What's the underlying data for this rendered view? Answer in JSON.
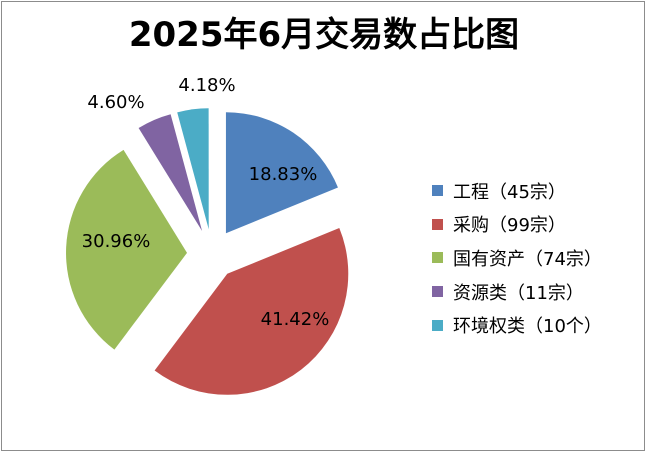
{
  "chart_data": {
    "type": "pie",
    "title": "2025年6月交易数占比图",
    "slices": [
      {
        "label": "工程（45宗）",
        "percent": 18.83,
        "display": "18.83%",
        "color": "#4F81BD"
      },
      {
        "label": "采购（99宗）",
        "percent": 41.42,
        "display": "41.42%",
        "color": "#C0504D"
      },
      {
        "label": "国有资产（74宗）",
        "percent": 30.96,
        "display": "30.96%",
        "color": "#9BBB59"
      },
      {
        "label": "资源类（11宗）",
        "percent": 4.6,
        "display": "4.60%",
        "color": "#8064A2"
      },
      {
        "label": "环境权类（10个）",
        "percent": 4.18,
        "display": "4.18%",
        "color": "#4BACC6"
      }
    ],
    "exploded": true,
    "legend_position": "right"
  }
}
